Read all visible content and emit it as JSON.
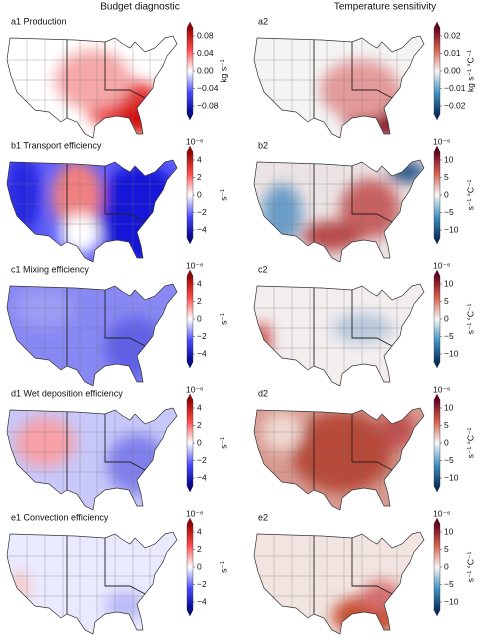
{
  "headers": [
    "Budget diagnostic",
    "Temperature sensitivity"
  ],
  "panels": [
    {
      "left": {
        "label": "a1 Production",
        "colorbar": {
          "ticks": [
            "0.08",
            "0.04",
            "0.00",
            "−0.04",
            "−0.08"
          ],
          "unit": "kg s⁻¹"
        }
      },
      "right": {
        "label": "a2",
        "colorbar": {
          "ticks": [
            "0.02",
            "0.01",
            "0.00",
            "−0.01",
            "−0.02"
          ],
          "unit": "kg s⁻¹ °C⁻¹"
        }
      }
    },
    {
      "left": {
        "label": "b1 Transport efficiency",
        "colorbar": {
          "exponent": "10⁻⁶",
          "ticks": [
            "4",
            "2",
            "0",
            "−2",
            "−4"
          ],
          "unit": "s⁻¹"
        }
      },
      "right": {
        "label": "b2",
        "colorbar": {
          "exponent": "10⁻⁶",
          "ticks": [
            "10",
            "5",
            "0",
            "−5",
            "−10"
          ],
          "unit": "s⁻¹ °C⁻¹"
        }
      }
    },
    {
      "left": {
        "label": "c1 Mixing efficiency",
        "colorbar": {
          "exponent": "10⁻⁶",
          "ticks": [
            "4",
            "2",
            "0",
            "−2",
            "−4"
          ],
          "unit": "s⁻¹"
        }
      },
      "right": {
        "label": "c2",
        "colorbar": {
          "exponent": "10⁻⁶",
          "ticks": [
            "10",
            "5",
            "0",
            "−5",
            "−10"
          ],
          "unit": "s⁻¹ °C⁻¹"
        }
      }
    },
    {
      "left": {
        "label": "d1 Wet deposition efficiency",
        "colorbar": {
          "exponent": "10⁻⁶",
          "ticks": [
            "4",
            "2",
            "0",
            "−2",
            "−4"
          ],
          "unit": "s⁻¹"
        }
      },
      "right": {
        "label": "d2",
        "colorbar": {
          "exponent": "10⁻⁶",
          "ticks": [
            "10",
            "5",
            "0",
            "−5",
            "−10"
          ],
          "unit": "s⁻¹ °C⁻¹"
        }
      }
    },
    {
      "left": {
        "label": "e1 Convection efficiency",
        "colorbar": {
          "exponent": "10⁻⁶",
          "ticks": [
            "4",
            "2",
            "0",
            "−2",
            "−4"
          ],
          "unit": "s⁻¹"
        }
      },
      "right": {
        "label": "e2",
        "colorbar": {
          "exponent": "10⁻⁶",
          "ticks": [
            "10",
            "5",
            "0",
            "−5",
            "−10"
          ],
          "unit": "s⁻¹ °C⁻¹"
        }
      }
    }
  ]
}
